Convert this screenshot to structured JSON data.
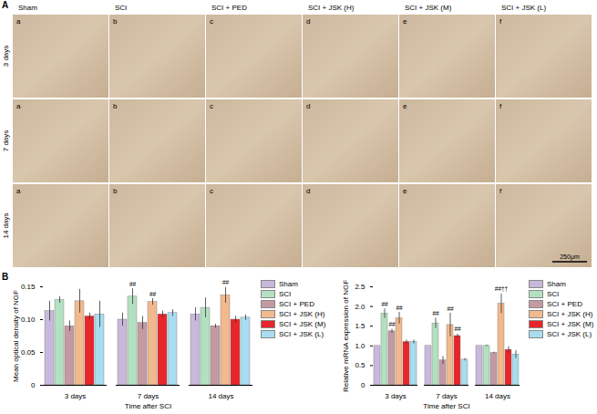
{
  "panel_a": {
    "label": "A",
    "columns": [
      "Sham",
      "SCI",
      "SCI + PED",
      "SCI + JSK (H)",
      "SCI + JSK (M)",
      "SCI + JSK (L)"
    ],
    "rows": [
      "3 days",
      "7 days",
      "14 days"
    ],
    "cell_labels": [
      "a",
      "b",
      "c",
      "d",
      "e",
      "f"
    ],
    "scale_bar": "250μm"
  },
  "panel_b": {
    "label": "B"
  },
  "chart_data": [
    {
      "type": "bar",
      "y_label": "Mean optical density of NGF",
      "x_label": "Time after SCI",
      "categories": [
        "3 days",
        "7 days",
        "14 days"
      ],
      "ylim": [
        0,
        0.15
      ],
      "yticks": [
        0,
        0.05,
        {
          "value": 0.1,
          "label": "0.10"
        },
        0.15
      ],
      "legend": "right",
      "series": [
        {
          "name": "Sham",
          "color": "#c8b8dc",
          "values": [
            0.113,
            0.1,
            0.108
          ],
          "errors": [
            0.015,
            0.01,
            0.01
          ],
          "significance": [
            null,
            null,
            null
          ]
        },
        {
          "name": "SCI",
          "color": "#b4e0c2",
          "values": [
            0.13,
            0.135,
            0.118
          ],
          "errors": [
            0.005,
            0.012,
            0.015
          ],
          "significance": [
            null,
            "##",
            null
          ]
        },
        {
          "name": "SCI + PED",
          "color": "#c49aa2",
          "values": [
            0.09,
            0.095,
            0.09
          ],
          "errors": [
            0.008,
            0.01,
            0.003
          ],
          "significance": [
            null,
            null,
            null
          ]
        },
        {
          "name": "SCI + JSK (H)",
          "color": "#f2b98e",
          "values": [
            0.128,
            0.127,
            0.137
          ],
          "errors": [
            0.018,
            0.005,
            0.012
          ],
          "significance": [
            null,
            "##",
            "##"
          ]
        },
        {
          "name": "SCI + JSK (M)",
          "color": "#e8252a",
          "values": [
            0.105,
            0.108,
            0.1
          ],
          "errors": [
            0.005,
            0.005,
            0.005
          ],
          "significance": [
            null,
            null,
            null
          ]
        },
        {
          "name": "SCI + JSK (L)",
          "color": "#a8dcef",
          "values": [
            0.108,
            0.11,
            0.103
          ],
          "errors": [
            0.02,
            0.005,
            0.004
          ],
          "significance": [
            null,
            null,
            null
          ]
        }
      ]
    },
    {
      "type": "bar",
      "y_label": "Relative mRNA expression of NGF",
      "x_label": "Time after SCI",
      "categories": [
        "3 days",
        "7 days",
        "14 days"
      ],
      "ylim": [
        0,
        2.5
      ],
      "yticks": [
        0,
        0.5,
        {
          "value": 1,
          "label": "1.0"
        },
        1.5,
        {
          "value": 2,
          "label": "2.0"
        },
        2.5
      ],
      "legend": "right",
      "series": [
        {
          "name": "Sham",
          "color": "#c8b8dc",
          "values": [
            1,
            1,
            1
          ],
          "errors": [
            0,
            0,
            0
          ],
          "significance": [
            null,
            null,
            null
          ]
        },
        {
          "name": "SCI",
          "color": "#b4e0c2",
          "values": [
            1.82,
            1.57,
            1.0
          ],
          "errors": [
            0.12,
            0.13,
            0.02
          ],
          "significance": [
            "##",
            "##",
            null
          ]
        },
        {
          "name": "SCI + PED",
          "color": "#c49aa2",
          "values": [
            1.37,
            0.63,
            0.82
          ],
          "errors": [
            0.05,
            0.1,
            0.02
          ],
          "significance": [
            "##",
            null,
            null
          ]
        },
        {
          "name": "SCI + JSK (H)",
          "color": "#f2b98e",
          "values": [
            1.7,
            1.53,
            2.07
          ],
          "errors": [
            0.15,
            0.3,
            0.25
          ],
          "significance": [
            "##",
            "##",
            "##††"
          ]
        },
        {
          "name": "SCI + JSK (M)",
          "color": "#e8252a",
          "values": [
            1.1,
            1.25,
            0.9
          ],
          "errors": [
            0.05,
            0.05,
            0.08
          ],
          "significance": [
            null,
            "##",
            null
          ]
        },
        {
          "name": "SCI + JSK (L)",
          "color": "#a8dcef",
          "values": [
            1.1,
            0.65,
            0.78
          ],
          "errors": [
            0.05,
            0.03,
            0.1
          ],
          "significance": [
            null,
            null,
            null
          ]
        }
      ]
    }
  ]
}
